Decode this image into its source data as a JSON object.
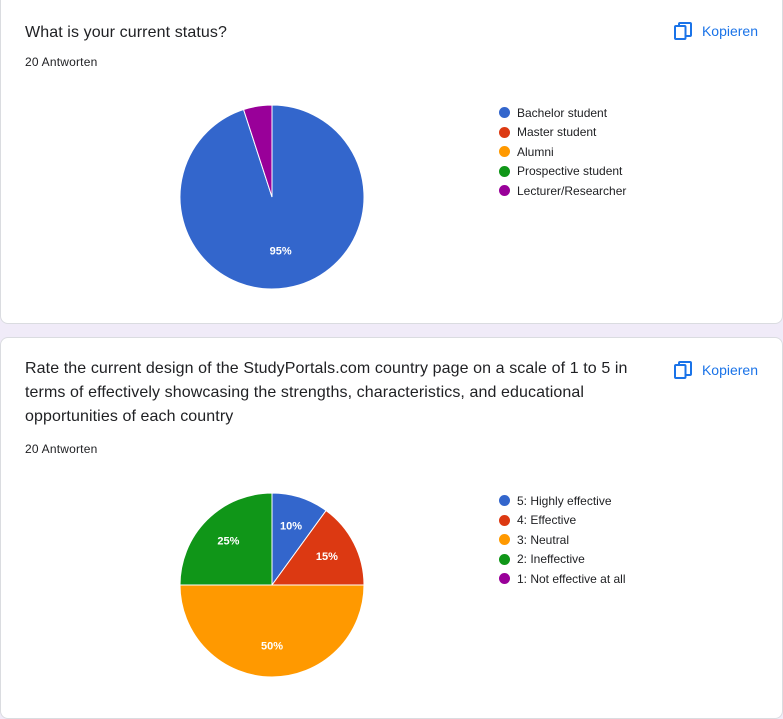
{
  "copy_label": "Kopieren",
  "questions": [
    {
      "title": "What is your current status?",
      "responses": "20 Antworten",
      "chart_data": {
        "type": "pie",
        "categories": [
          "Bachelor student",
          "Master student",
          "Alumni",
          "Prospective student",
          "Lecturer/Researcher"
        ],
        "values": [
          95,
          0,
          0,
          0,
          5
        ],
        "colors": [
          "#3366cc",
          "#dc3912",
          "#ff9900",
          "#109618",
          "#990099"
        ],
        "slice_labels": [
          "95%",
          "",
          "",
          "",
          ""
        ]
      }
    },
    {
      "title": "Rate the current design of the StudyPortals.com country page on a scale of 1 to 5 in terms of effectively showcasing the strengths, characteristics, and educational opportunities of each country",
      "responses": "20 Antworten",
      "chart_data": {
        "type": "pie",
        "categories": [
          "5: Highly effective",
          "4: Effective",
          "3: Neutral",
          "2: Ineffective",
          "1: Not effective at all"
        ],
        "values": [
          10,
          15,
          50,
          25,
          0
        ],
        "colors": [
          "#3366cc",
          "#dc3912",
          "#ff9900",
          "#109618",
          "#990099"
        ],
        "slice_labels": [
          "10%",
          "15%",
          "50%",
          "25%",
          ""
        ]
      }
    }
  ]
}
